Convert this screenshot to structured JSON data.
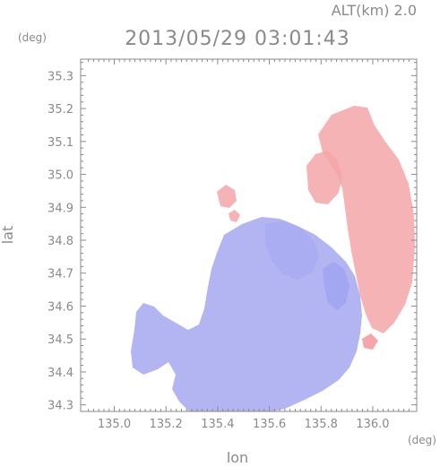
{
  "header": {
    "altitude_label": "ALT(km) 2.0",
    "timestamp": "2013/05/29 03:01:43"
  },
  "units": {
    "y_unit": "(deg)",
    "x_unit": "(deg)"
  },
  "axes": {
    "xlabel": "lon",
    "ylabel": "lat",
    "xlim": [
      134.87,
      136.17
    ],
    "ylim": [
      34.28,
      35.35
    ],
    "x_ticks": [
      "135.0",
      "135.2",
      "135.4",
      "135.6",
      "135.8",
      "136.0"
    ],
    "y_ticks": [
      "35.3",
      "35.2",
      "35.1",
      "35.0",
      "34.9",
      "34.8",
      "34.7",
      "34.6",
      "34.5",
      "34.4",
      "34.3"
    ]
  },
  "colors": {
    "approaching": "#9fa3ef",
    "receding": "#f4a6a8",
    "frame": "#8a8a8a"
  }
}
